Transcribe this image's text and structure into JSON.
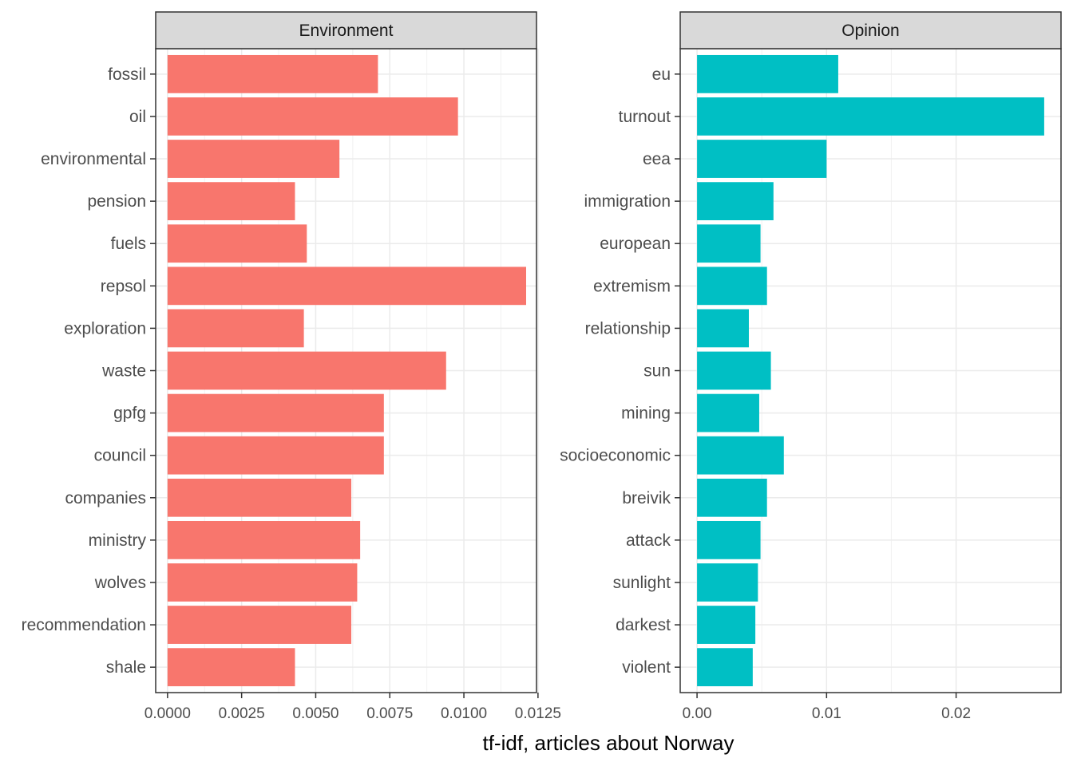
{
  "chart_data": {
    "type": "bar",
    "orientation": "horizontal",
    "xlabel": "tf-idf, articles about Norway",
    "ylabel": "",
    "grid": true,
    "legend": "none",
    "panels": [
      {
        "title": "Environment",
        "color": "#F8766D",
        "xlim": [
          -0.0004,
          0.01245
        ],
        "ticks": [
          0,
          0.0025,
          0.005,
          0.0075,
          0.01,
          0.0125
        ],
        "tick_labels": [
          "0.0000",
          "0.0025",
          "0.0050",
          "0.0075",
          "0.0100",
          "0.0125"
        ],
        "categories": [
          "fossil",
          "oil",
          "environmental",
          "pension",
          "fuels",
          "repsol",
          "exploration",
          "waste",
          "gpfg",
          "council",
          "companies",
          "ministry",
          "wolves",
          "recommendation",
          "shale"
        ],
        "values": [
          0.0071,
          0.0098,
          0.0058,
          0.0043,
          0.0047,
          0.0121,
          0.0046,
          0.0094,
          0.0073,
          0.0073,
          0.0062,
          0.0065,
          0.0064,
          0.0062,
          0.0043
        ]
      },
      {
        "title": "Opinion",
        "color": "#00BFC4",
        "xlim": [
          -0.0013,
          0.0281
        ],
        "ticks": [
          0,
          0.01,
          0.02
        ],
        "tick_labels": [
          "0.00",
          "0.01",
          "0.02"
        ],
        "categories": [
          "eu",
          "turnout",
          "eea",
          "immigration",
          "european",
          "extremism",
          "relationship",
          "sun",
          "mining",
          "socioeconomic",
          "breivik",
          "attack",
          "sunlight",
          "darkest",
          "violent"
        ],
        "values": [
          0.0109,
          0.0268,
          0.01,
          0.0059,
          0.0049,
          0.0054,
          0.004,
          0.0057,
          0.0048,
          0.0067,
          0.0054,
          0.0049,
          0.0047,
          0.0045,
          0.0043
        ]
      }
    ]
  }
}
